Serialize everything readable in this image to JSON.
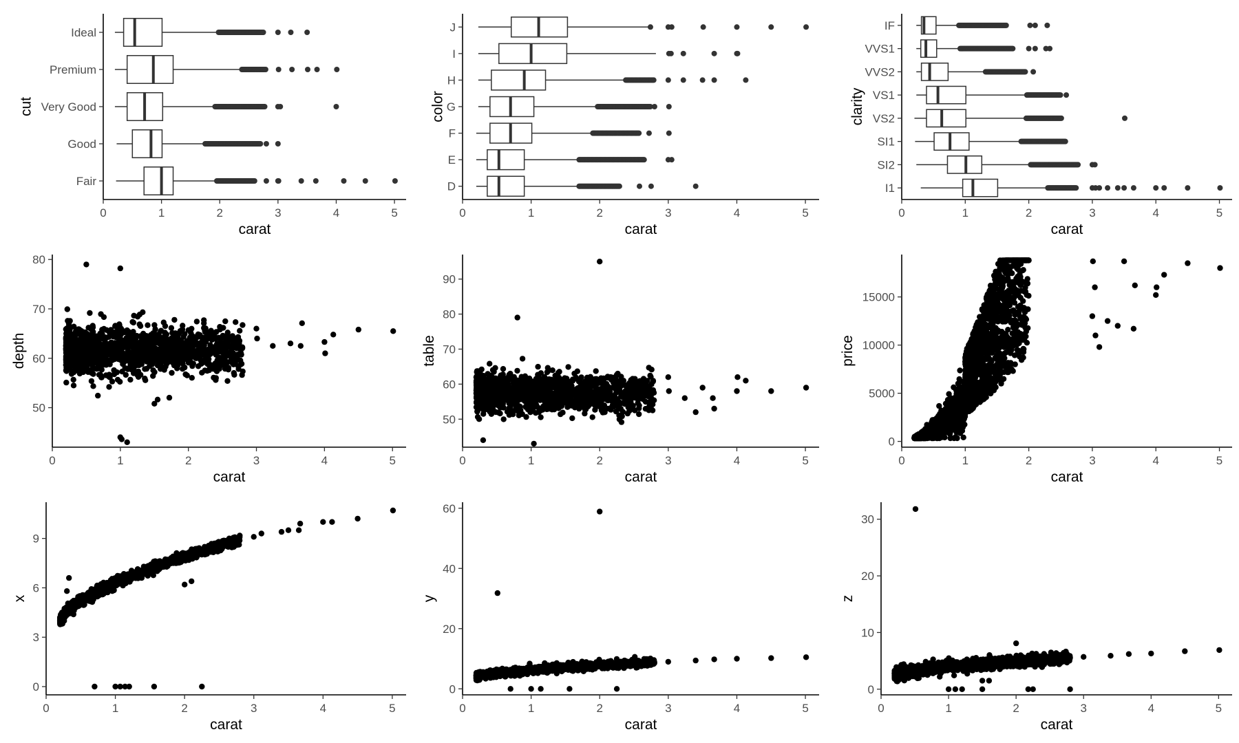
{
  "chart_data": [
    {
      "type": "box",
      "orientation": "horizontal",
      "xlabel": "carat",
      "ylabel": "cut",
      "xlim": [
        0,
        5.2
      ],
      "xticks": [
        0,
        1,
        2,
        3,
        4,
        5
      ],
      "categories": [
        "Fair",
        "Good",
        "Very Good",
        "Premium",
        "Ideal"
      ],
      "boxes": [
        {
          "q1": 0.7,
          "median": 1.0,
          "q3": 1.2,
          "whisker_low": 0.22,
          "whisker_high": 1.95,
          "outliers_dense": [
            1.95,
            2.6
          ],
          "outliers": [
            2.8,
            3.0,
            3.01,
            3.4,
            3.65,
            4.13,
            4.5,
            5.01
          ]
        },
        {
          "q1": 0.5,
          "median": 0.82,
          "q3": 1.01,
          "whisker_low": 0.23,
          "whisker_high": 1.75,
          "outliers_dense": [
            1.75,
            2.7
          ],
          "outliers": [
            2.8,
            3.0
          ]
        },
        {
          "q1": 0.41,
          "median": 0.71,
          "q3": 1.02,
          "whisker_low": 0.2,
          "whisker_high": 1.92,
          "outliers_dense": [
            1.92,
            2.78
          ],
          "outliers": [
            3.0,
            3.04,
            4.0
          ]
        },
        {
          "q1": 0.41,
          "median": 0.86,
          "q3": 1.2,
          "whisker_low": 0.2,
          "whisker_high": 2.38,
          "outliers_dense": [
            2.38,
            2.8
          ],
          "outliers": [
            3.01,
            3.24,
            3.51,
            3.67,
            4.01
          ]
        },
        {
          "q1": 0.35,
          "median": 0.54,
          "q3": 1.01,
          "whisker_low": 0.2,
          "whisker_high": 1.98,
          "outliers_dense": [
            1.98,
            2.75
          ],
          "outliers": [
            3.0,
            3.22,
            3.5
          ]
        }
      ]
    },
    {
      "type": "box",
      "orientation": "horizontal",
      "xlabel": "carat",
      "ylabel": "color",
      "xlim": [
        0,
        5.2
      ],
      "xticks": [
        0,
        1,
        2,
        3,
        4,
        5
      ],
      "categories": [
        "D",
        "E",
        "F",
        "G",
        "H",
        "I",
        "J"
      ],
      "boxes": [
        {
          "q1": 0.36,
          "median": 0.53,
          "q3": 0.9,
          "whisker_low": 0.2,
          "whisker_high": 1.7,
          "outliers_dense": [
            1.7,
            2.3
          ],
          "outliers": [
            2.58,
            2.75,
            3.4
          ]
        },
        {
          "q1": 0.36,
          "median": 0.53,
          "q3": 0.9,
          "whisker_low": 0.2,
          "whisker_high": 1.7,
          "outliers_dense": [
            1.7,
            2.65
          ],
          "outliers": [
            3.0,
            3.05
          ]
        },
        {
          "q1": 0.4,
          "median": 0.7,
          "q3": 1.01,
          "whisker_low": 0.2,
          "whisker_high": 1.9,
          "outliers_dense": [
            1.9,
            2.58
          ],
          "outliers": [
            2.72,
            3.01
          ]
        },
        {
          "q1": 0.4,
          "median": 0.7,
          "q3": 1.04,
          "whisker_low": 0.23,
          "whisker_high": 1.97,
          "outliers_dense": [
            1.97,
            2.75
          ],
          "outliers": [
            2.8,
            3.01
          ]
        },
        {
          "q1": 0.42,
          "median": 0.9,
          "q3": 1.21,
          "whisker_low": 0.23,
          "whisker_high": 2.38,
          "outliers_dense": [
            2.38,
            2.8
          ],
          "outliers": [
            3.0,
            3.22,
            3.5,
            3.67,
            4.13
          ]
        },
        {
          "q1": 0.53,
          "median": 1.0,
          "q3": 1.52,
          "whisker_low": 0.23,
          "whisker_high": 2.82,
          "outliers_dense": [],
          "outliers": [
            3.01,
            3.04,
            3.22,
            3.67,
            4.0,
            4.01
          ]
        },
        {
          "q1": 0.71,
          "median": 1.11,
          "q3": 1.53,
          "whisker_low": 0.23,
          "whisker_high": 2.74,
          "outliers_dense": [],
          "outliers": [
            2.74,
            3.0,
            3.05,
            3.51,
            4.0,
            4.5,
            5.01
          ]
        }
      ]
    },
    {
      "type": "box",
      "orientation": "horizontal",
      "xlabel": "carat",
      "ylabel": "clarity",
      "xlim": [
        0,
        5.2
      ],
      "xticks": [
        0,
        1,
        2,
        3,
        4,
        5
      ],
      "categories": [
        "I1",
        "SI2",
        "SI1",
        "VS2",
        "VS1",
        "VVS2",
        "VVS1",
        "IF"
      ],
      "boxes": [
        {
          "q1": 0.96,
          "median": 1.12,
          "q3": 1.51,
          "whisker_low": 0.3,
          "whisker_high": 2.3,
          "outliers_dense": [
            2.3,
            2.75
          ],
          "outliers": [
            3.0,
            3.05,
            3.11,
            3.24,
            3.4,
            3.5,
            3.65,
            4.0,
            4.13,
            4.5,
            5.01
          ]
        },
        {
          "q1": 0.72,
          "median": 1.01,
          "q3": 1.26,
          "whisker_low": 0.23,
          "whisker_high": 2.03,
          "outliers_dense": [
            2.03,
            2.78
          ],
          "outliers": [
            3.0,
            3.04
          ]
        },
        {
          "q1": 0.51,
          "median": 0.76,
          "q3": 1.06,
          "whisker_low": 0.21,
          "whisker_high": 1.88,
          "outliers_dense": [
            1.88,
            2.58
          ]
        },
        {
          "q1": 0.39,
          "median": 0.63,
          "q3": 1.01,
          "whisker_low": 0.2,
          "whisker_high": 1.96,
          "outliers_dense": [
            1.96,
            2.52
          ],
          "outliers": [
            3.51
          ]
        },
        {
          "q1": 0.39,
          "median": 0.57,
          "q3": 1.01,
          "whisker_low": 0.23,
          "whisker_high": 1.97,
          "outliers_dense": [
            1.97,
            2.5
          ],
          "outliers": [
            2.59
          ]
        },
        {
          "q1": 0.31,
          "median": 0.44,
          "q3": 0.73,
          "whisker_low": 0.23,
          "whisker_high": 1.32,
          "outliers_dense": [
            1.32,
            1.95
          ],
          "outliers": [
            2.07
          ]
        },
        {
          "q1": 0.3,
          "median": 0.38,
          "q3": 0.55,
          "whisker_low": 0.23,
          "whisker_high": 0.92,
          "outliers_dense": [
            0.92,
            1.75
          ],
          "outliers": [
            2.0,
            2.1,
            2.27,
            2.33
          ]
        },
        {
          "q1": 0.31,
          "median": 0.35,
          "q3": 0.54,
          "whisker_low": 0.23,
          "whisker_high": 0.9,
          "outliers_dense": [
            0.9,
            1.65
          ],
          "outliers": [
            2.02,
            2.1,
            2.29
          ]
        }
      ]
    },
    {
      "type": "scatter",
      "xlabel": "carat",
      "ylabel": "depth",
      "xlim": [
        0,
        5.2
      ],
      "ylim": [
        42,
        81
      ],
      "xticks": [
        0,
        1,
        2,
        3,
        4,
        5
      ],
      "yticks": [
        50,
        60,
        70,
        80
      ],
      "clouds": [
        {
          "x": [
            0.2,
            2.8
          ],
          "center": [
            61.7,
            61.7
          ],
          "spread": [
            2.4,
            2.2
          ]
        }
      ],
      "points": [
        [
          0.5,
          79.0
        ],
        [
          1.0,
          78.2
        ],
        [
          1.02,
          43.6
        ],
        [
          1.1,
          43.0
        ],
        [
          1.0,
          44.0
        ],
        [
          1.5,
          50.8
        ],
        [
          3.0,
          66.0
        ],
        [
          3.01,
          64.0
        ],
        [
          3.24,
          62.5
        ],
        [
          3.5,
          63.0
        ],
        [
          3.65,
          62.5
        ],
        [
          3.67,
          67.1
        ],
        [
          4.0,
          63.3
        ],
        [
          4.01,
          61.0
        ],
        [
          4.13,
          64.8
        ],
        [
          4.5,
          65.8
        ],
        [
          5.01,
          65.5
        ]
      ]
    },
    {
      "type": "scatter",
      "xlabel": "carat",
      "ylabel": "table",
      "xlim": [
        0,
        5.2
      ],
      "ylim": [
        42,
        97
      ],
      "xticks": [
        0,
        1,
        2,
        3,
        4,
        5
      ],
      "yticks": [
        50,
        60,
        70,
        80,
        90
      ],
      "clouds": [
        {
          "x": [
            0.2,
            2.8
          ],
          "center": [
            57.5,
            57.5
          ],
          "spread": [
            2.6,
            2.4
          ]
        }
      ],
      "points": [
        [
          2.0,
          95.0
        ],
        [
          0.3,
          44.0
        ],
        [
          1.04,
          43.0
        ],
        [
          0.8,
          79.0
        ],
        [
          3.0,
          62.0
        ],
        [
          3.01,
          58.0
        ],
        [
          3.24,
          56.0
        ],
        [
          3.4,
          52.0
        ],
        [
          3.5,
          59.0
        ],
        [
          3.65,
          56.0
        ],
        [
          3.67,
          53.0
        ],
        [
          4.0,
          58.0
        ],
        [
          4.01,
          62.0
        ],
        [
          4.13,
          61.0
        ],
        [
          4.5,
          58.0
        ],
        [
          5.01,
          59.0
        ]
      ]
    },
    {
      "type": "scatter",
      "xlabel": "carat",
      "ylabel": "price",
      "xlim": [
        0,
        5.2
      ],
      "ylim": [
        -600,
        19400
      ],
      "xticks": [
        0,
        1,
        2,
        3,
        4,
        5
      ],
      "yticks": [
        0,
        5000,
        10000,
        15000
      ],
      "clouds": [
        {
          "x": [
            0.2,
            1.0
          ],
          "price_fn": "power",
          "spread_rel": 0.35
        },
        {
          "x": [
            1.0,
            2.0
          ],
          "price_fn": "power",
          "spread_rel": 0.45
        }
      ],
      "points": [
        [
          3.0,
          13000
        ],
        [
          3.01,
          18700
        ],
        [
          3.04,
          16000
        ],
        [
          3.05,
          11000
        ],
        [
          3.11,
          9800
        ],
        [
          3.24,
          12500
        ],
        [
          3.4,
          12000
        ],
        [
          3.5,
          18700
        ],
        [
          3.65,
          11700
        ],
        [
          3.67,
          16200
        ],
        [
          4.0,
          15200
        ],
        [
          4.01,
          16000
        ],
        [
          4.13,
          17300
        ],
        [
          4.5,
          18500
        ],
        [
          5.01,
          18000
        ]
      ]
    },
    {
      "type": "scatter",
      "xlabel": "carat",
      "ylabel": "x",
      "xlim": [
        0,
        5.2
      ],
      "ylim": [
        -0.5,
        11.2
      ],
      "xticks": [
        0,
        1,
        2,
        3,
        4,
        5
      ],
      "yticks": [
        0,
        3,
        6,
        9
      ],
      "clouds": [
        {
          "x": [
            0.2,
            2.8
          ],
          "fn": "x",
          "spread": 0.15
        }
      ],
      "points": [
        [
          0.7,
          0
        ],
        [
          1.0,
          0
        ],
        [
          1.07,
          0
        ],
        [
          1.14,
          0
        ],
        [
          1.2,
          0
        ],
        [
          1.56,
          0
        ],
        [
          2.25,
          0
        ],
        [
          2.0,
          6.2
        ],
        [
          2.1,
          6.4
        ],
        [
          0.3,
          5.8
        ],
        [
          0.33,
          6.6
        ],
        [
          3.0,
          9.1
        ],
        [
          3.11,
          9.3
        ],
        [
          3.4,
          9.4
        ],
        [
          3.5,
          9.5
        ],
        [
          3.65,
          9.5
        ],
        [
          3.67,
          9.9
        ],
        [
          4.0,
          10.0
        ],
        [
          4.13,
          10.0
        ],
        [
          4.5,
          10.2
        ],
        [
          5.01,
          10.7
        ]
      ]
    },
    {
      "type": "scatter",
      "xlabel": "carat",
      "ylabel": "y",
      "xlim": [
        0,
        5.2
      ],
      "ylim": [
        -2,
        62
      ],
      "xticks": [
        0,
        1,
        2,
        3,
        4,
        5
      ],
      "yticks": [
        0,
        20,
        40,
        60
      ],
      "clouds": [
        {
          "x": [
            0.2,
            2.8
          ],
          "fn": "y",
          "spread": 0.15
        }
      ],
      "points": [
        [
          2.0,
          58.9
        ],
        [
          0.51,
          31.8
        ],
        [
          0.7,
          0
        ],
        [
          1.0,
          0
        ],
        [
          1.14,
          0
        ],
        [
          1.56,
          0
        ],
        [
          2.25,
          0
        ],
        [
          3.0,
          9.0
        ],
        [
          3.4,
          9.4
        ],
        [
          3.67,
          9.8
        ],
        [
          4.0,
          10.0
        ],
        [
          4.5,
          10.2
        ],
        [
          5.01,
          10.5
        ]
      ]
    },
    {
      "type": "scatter",
      "xlabel": "carat",
      "ylabel": "z",
      "xlim": [
        0,
        5.2
      ],
      "ylim": [
        -1,
        33
      ],
      "xticks": [
        0,
        1,
        2,
        3,
        4,
        5
      ],
      "yticks": [
        0,
        10,
        20,
        30
      ],
      "clouds": [
        {
          "x": [
            0.2,
            2.8
          ],
          "fn": "z",
          "spread": 0.12
        }
      ],
      "points": [
        [
          0.51,
          31.8
        ],
        [
          2.0,
          8.1
        ],
        [
          1.0,
          0
        ],
        [
          1.1,
          0
        ],
        [
          1.2,
          0
        ],
        [
          1.5,
          0
        ],
        [
          2.18,
          0
        ],
        [
          2.25,
          0
        ],
        [
          2.8,
          0
        ],
        [
          1.5,
          1.5
        ],
        [
          1.6,
          1.5
        ],
        [
          3.0,
          5.7
        ],
        [
          3.4,
          5.9
        ],
        [
          3.67,
          6.2
        ],
        [
          4.0,
          6.3
        ],
        [
          4.5,
          6.7
        ],
        [
          5.01,
          6.9
        ]
      ]
    }
  ]
}
